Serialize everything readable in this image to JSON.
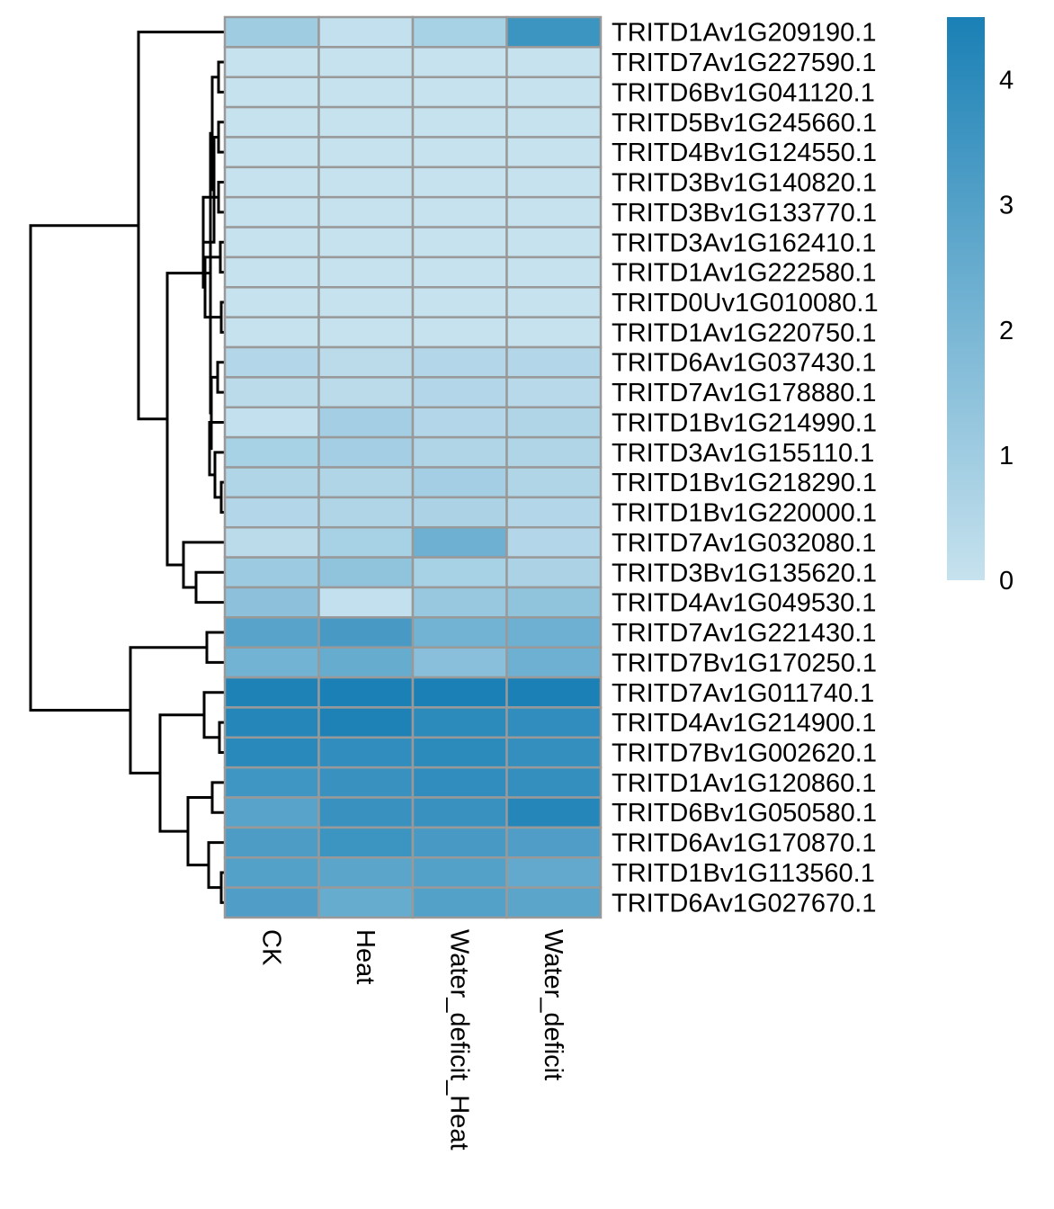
{
  "chart_data": {
    "type": "heatmap",
    "columns": [
      "CK",
      "Heat",
      "Water_deficit_Heat",
      "Water_deficit"
    ],
    "rows": [
      "TRITD1Av1G209190.1",
      "TRITD7Av1G227590.1",
      "TRITD6Bv1G041120.1",
      "TRITD5Bv1G245660.1",
      "TRITD4Bv1G124550.1",
      "TRITD3Bv1G140820.1",
      "TRITD3Bv1G133770.1",
      "TRITD3Av1G162410.1",
      "TRITD1Av1G222580.1",
      "TRITD0Uv1G010080.1",
      "TRITD1Av1G220750.1",
      "TRITD6Av1G037430.1",
      "TRITD7Av1G178880.1",
      "TRITD1Bv1G214990.1",
      "TRITD3Av1G155110.1",
      "TRITD1Bv1G218290.1",
      "TRITD1Bv1G220000.1",
      "TRITD7Av1G032080.1",
      "TRITD3Bv1G135620.1",
      "TRITD4Av1G049530.1",
      "TRITD7Av1G221430.1",
      "TRITD7Bv1G170250.1",
      "TRITD7Av1G011740.1",
      "TRITD4Av1G214900.1",
      "TRITD7Bv1G002620.1",
      "TRITD1Av1G120860.1",
      "TRITD6Bv1G050580.1",
      "TRITD6Av1G170870.1",
      "TRITD1Bv1G113560.1",
      "TRITD6Av1G027670.1"
    ],
    "values": [
      [
        1.0,
        0.1,
        0.8,
        3.6
      ],
      [
        0.0,
        0.0,
        0.0,
        0.0
      ],
      [
        0.0,
        0.0,
        0.0,
        0.0
      ],
      [
        0.0,
        0.0,
        0.0,
        0.0
      ],
      [
        0.0,
        0.0,
        0.0,
        0.0
      ],
      [
        0.0,
        0.0,
        0.0,
        0.0
      ],
      [
        0.0,
        0.0,
        0.0,
        0.0
      ],
      [
        0.0,
        0.0,
        0.0,
        0.0
      ],
      [
        0.0,
        0.0,
        0.0,
        0.0
      ],
      [
        0.0,
        0.0,
        0.0,
        0.0
      ],
      [
        0.0,
        0.0,
        0.0,
        0.0
      ],
      [
        0.5,
        0.3,
        0.5,
        0.5
      ],
      [
        0.3,
        0.3,
        0.5,
        0.4
      ],
      [
        0.1,
        0.9,
        0.5,
        0.6
      ],
      [
        0.8,
        0.9,
        0.6,
        0.6
      ],
      [
        0.6,
        0.6,
        0.9,
        0.6
      ],
      [
        0.5,
        0.6,
        0.7,
        0.5
      ],
      [
        0.3,
        0.8,
        2.3,
        0.5
      ],
      [
        1.1,
        1.4,
        0.8,
        0.7
      ],
      [
        1.5,
        0.1,
        1.2,
        1.4
      ],
      [
        2.9,
        3.3,
        2.2,
        2.3
      ],
      [
        2.2,
        2.5,
        1.6,
        2.3
      ],
      [
        4.4,
        4.5,
        4.5,
        4.5
      ],
      [
        4.2,
        4.4,
        4.0,
        3.9
      ],
      [
        4.1,
        3.9,
        4.0,
        3.8
      ],
      [
        3.5,
        3.7,
        3.9,
        3.8
      ],
      [
        2.9,
        3.7,
        3.7,
        4.2
      ],
      [
        3.2,
        3.6,
        3.3,
        3.1
      ],
      [
        3.0,
        2.8,
        3.0,
        2.6
      ],
      [
        3.1,
        2.5,
        3.0,
        2.8
      ]
    ],
    "colorbar": {
      "min": 0,
      "max": 4.5,
      "ticks": [
        "0",
        "1",
        "2",
        "3",
        "4"
      ],
      "low_color": "#c6e2ee",
      "high_color": "#1a80b5"
    },
    "cell_border_color": "#999999",
    "row_dendrogram": true,
    "column_dendrogram": false
  }
}
